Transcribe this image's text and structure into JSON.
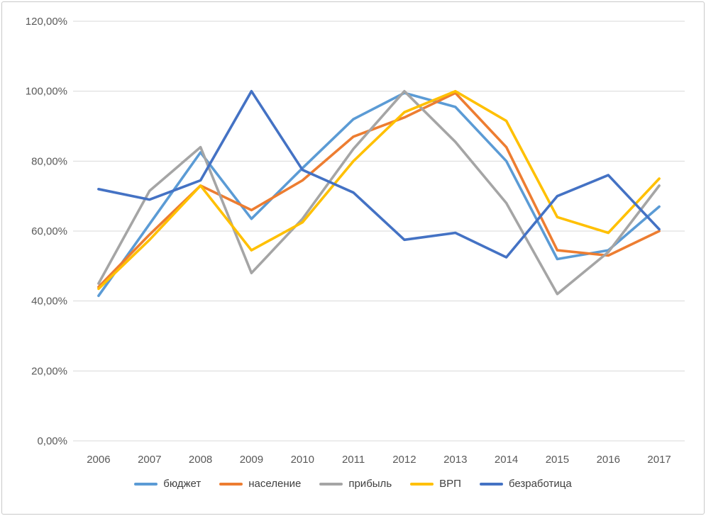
{
  "chart_data": {
    "type": "line",
    "title": "",
    "xlabel": "",
    "ylabel": "",
    "unit": "percent",
    "grid": true,
    "legend_position": "bottom",
    "categories": [
      "2006",
      "2007",
      "2008",
      "2009",
      "2010",
      "2011",
      "2012",
      "2013",
      "2014",
      "2015",
      "2016",
      "2017"
    ],
    "y_axis": {
      "min": 0,
      "max": 120,
      "step": 20,
      "tick_labels": [
        "0,00%",
        "20,00%",
        "40,00%",
        "60,00%",
        "80,00%",
        "100,00%",
        "120,00%"
      ]
    },
    "series": [
      {
        "name": "бюджет",
        "color": "#5B9BD5",
        "values": [
          41.5,
          62,
          82.5,
          63.5,
          78,
          92,
          99.5,
          95.5,
          80,
          52,
          54.5,
          67
        ]
      },
      {
        "name": "население",
        "color": "#ED7D31",
        "values": [
          44,
          59,
          73,
          66,
          74.5,
          87,
          92.5,
          99.5,
          84,
          54.5,
          53,
          60
        ]
      },
      {
        "name": "прибыль",
        "color": "#A5A5A5",
        "values": [
          45,
          71.5,
          84,
          48,
          63.5,
          83.5,
          100,
          85.5,
          68,
          42,
          54,
          73
        ]
      },
      {
        "name": "ВРП",
        "color": "#FFC000",
        "values": [
          43.5,
          57.5,
          73,
          54.5,
          62.5,
          80,
          94,
          100,
          91.5,
          64,
          59.5,
          75
        ]
      },
      {
        "name": "безработица",
        "color": "#4472C4",
        "values": [
          72,
          69,
          74.5,
          100,
          77.5,
          71,
          57.5,
          59.5,
          52.5,
          70,
          76,
          60.5
        ]
      }
    ]
  },
  "style": {
    "gridline_color": "#D9D9D9",
    "axis_text_color": "#595959",
    "legend_text_color": "#404040",
    "background_color": "#FFFFFF",
    "frame_border_color": "#C9C9C9"
  }
}
